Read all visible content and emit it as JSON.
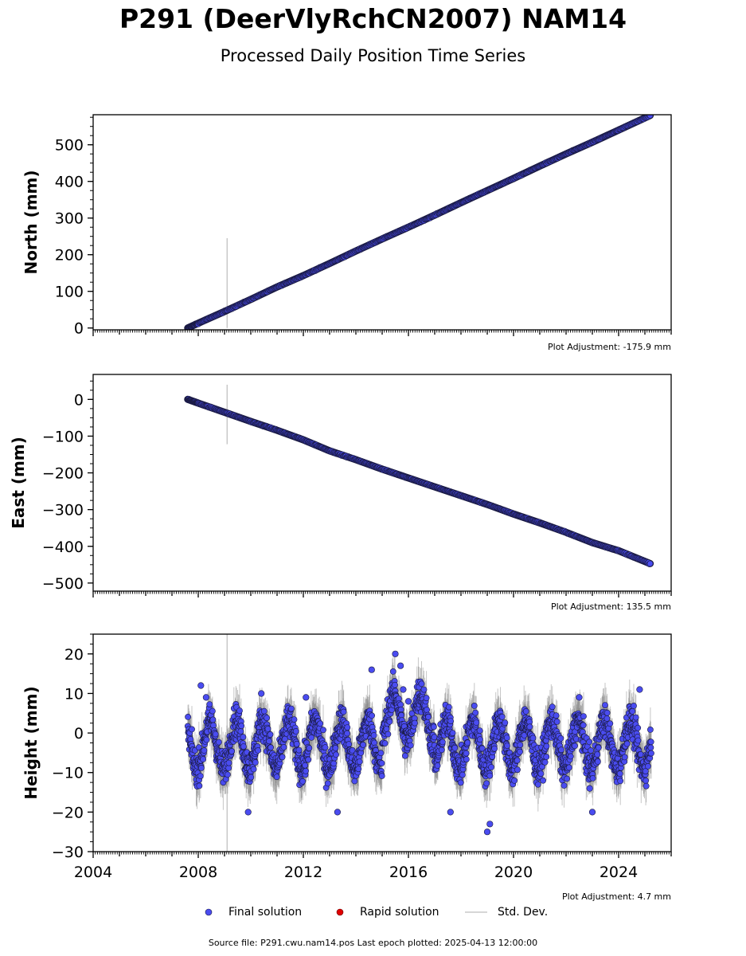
{
  "header": {
    "title": "P291 (DeerVlyRchCN2007) NAM14",
    "subtitle": "Processed Daily Position Time Series"
  },
  "colors": {
    "final": "#4a4cf0",
    "final_edge": "#1a1a40",
    "rapid": "#e00000",
    "stddev": "#a0a0a0"
  },
  "chart_data": [
    {
      "type": "scatter",
      "ylabel": "North (mm)",
      "xlim": [
        2004,
        2026
      ],
      "ylim": [
        -5,
        582
      ],
      "yticks": [
        0,
        100,
        200,
        300,
        400,
        500
      ],
      "xticks": [
        2004,
        2008,
        2012,
        2016,
        2020,
        2024
      ],
      "show_xtick_labels": false,
      "adjustment": "Plot Adjustment: -175.9 mm",
      "series": [
        {
          "label": "Final solution",
          "x": [
            2007.6,
            2008.0,
            2009.0,
            2010.0,
            2011.0,
            2012.0,
            2013.0,
            2014.0,
            2015.0,
            2016.0,
            2017.0,
            2018.0,
            2019.0,
            2020.0,
            2021.0,
            2022.0,
            2023.0,
            2024.0,
            2025.2
          ],
          "y": [
            0,
            13,
            45,
            78,
            112,
            143,
            176,
            210,
            243,
            275,
            308,
            342,
            375,
            408,
            442,
            475,
            507,
            540,
            580
          ]
        }
      ],
      "stddev_spike": {
        "x": 2009.1,
        "y_low": 0,
        "y_high": 245
      }
    },
    {
      "type": "scatter",
      "ylabel": "East (mm)",
      "xlim": [
        2004,
        2026
      ],
      "ylim": [
        -522,
        68
      ],
      "yticks": [
        0,
        -100,
        -200,
        -300,
        -400,
        -500
      ],
      "xticks": [
        2004,
        2008,
        2012,
        2016,
        2020,
        2024
      ],
      "show_xtick_labels": false,
      "adjustment": "Plot Adjustment: 135.5 mm",
      "series": [
        {
          "label": "Final solution",
          "x": [
            2007.6,
            2008.0,
            2009.0,
            2010.0,
            2011.0,
            2012.0,
            2013.0,
            2014.0,
            2015.0,
            2016.0,
            2017.0,
            2018.0,
            2019.0,
            2020.0,
            2021.0,
            2022.0,
            2023.0,
            2024.0,
            2025.2
          ],
          "y": [
            0,
            -10,
            -35,
            -60,
            -84,
            -110,
            -140,
            -164,
            -190,
            -214,
            -238,
            -262,
            -286,
            -312,
            -336,
            -362,
            -390,
            -412,
            -447
          ]
        }
      ],
      "stddev_spike": {
        "x": 2009.1,
        "y_low": -122,
        "y_high": 40
      }
    },
    {
      "type": "scatter",
      "ylabel": "Height (mm)",
      "xlim": [
        2004,
        2026
      ],
      "ylim": [
        -30,
        25
      ],
      "yticks": [
        20,
        10,
        0,
        -10,
        -20,
        -30
      ],
      "xticks": [
        2004,
        2008,
        2012,
        2016,
        2020,
        2024
      ],
      "xtick_labels": [
        "2004",
        "2008",
        "2012",
        "2016",
        "2020",
        "2024"
      ],
      "show_xtick_labels": true,
      "adjustment": "Plot Adjustment: 4.7 mm",
      "series": [
        {
          "label": "Final solution",
          "seasonal": {
            "amplitude_mm": 6,
            "period_years": 1,
            "noise_mm": 4,
            "start": 2007.6,
            "end": 2025.25,
            "mean": -3
          },
          "x": [
            2008.1,
            2008.3,
            2009.9,
            2010.4,
            2012.1,
            2013.3,
            2014.6,
            2015.5,
            2015.7,
            2015.8,
            2016.0,
            2017.6,
            2019.0,
            2019.1,
            2022.5,
            2022.9,
            2023.0,
            2024.8
          ],
          "y": [
            12,
            9,
            -20,
            10,
            9,
            -20,
            16,
            20,
            17,
            11,
            8,
            -20,
            -25,
            -23,
            9,
            -14,
            -20,
            11
          ]
        }
      ],
      "stddev_spike": {
        "x": 2009.1,
        "y_low": -30,
        "y_high": 25
      }
    }
  ],
  "legend": {
    "final": "Final solution",
    "rapid": "Rapid solution",
    "stddev": "Std. Dev."
  },
  "footer": {
    "text": "Source file: P291.cwu.nam14.pos  Last epoch plotted: 2025-04-13 12:00:00"
  }
}
